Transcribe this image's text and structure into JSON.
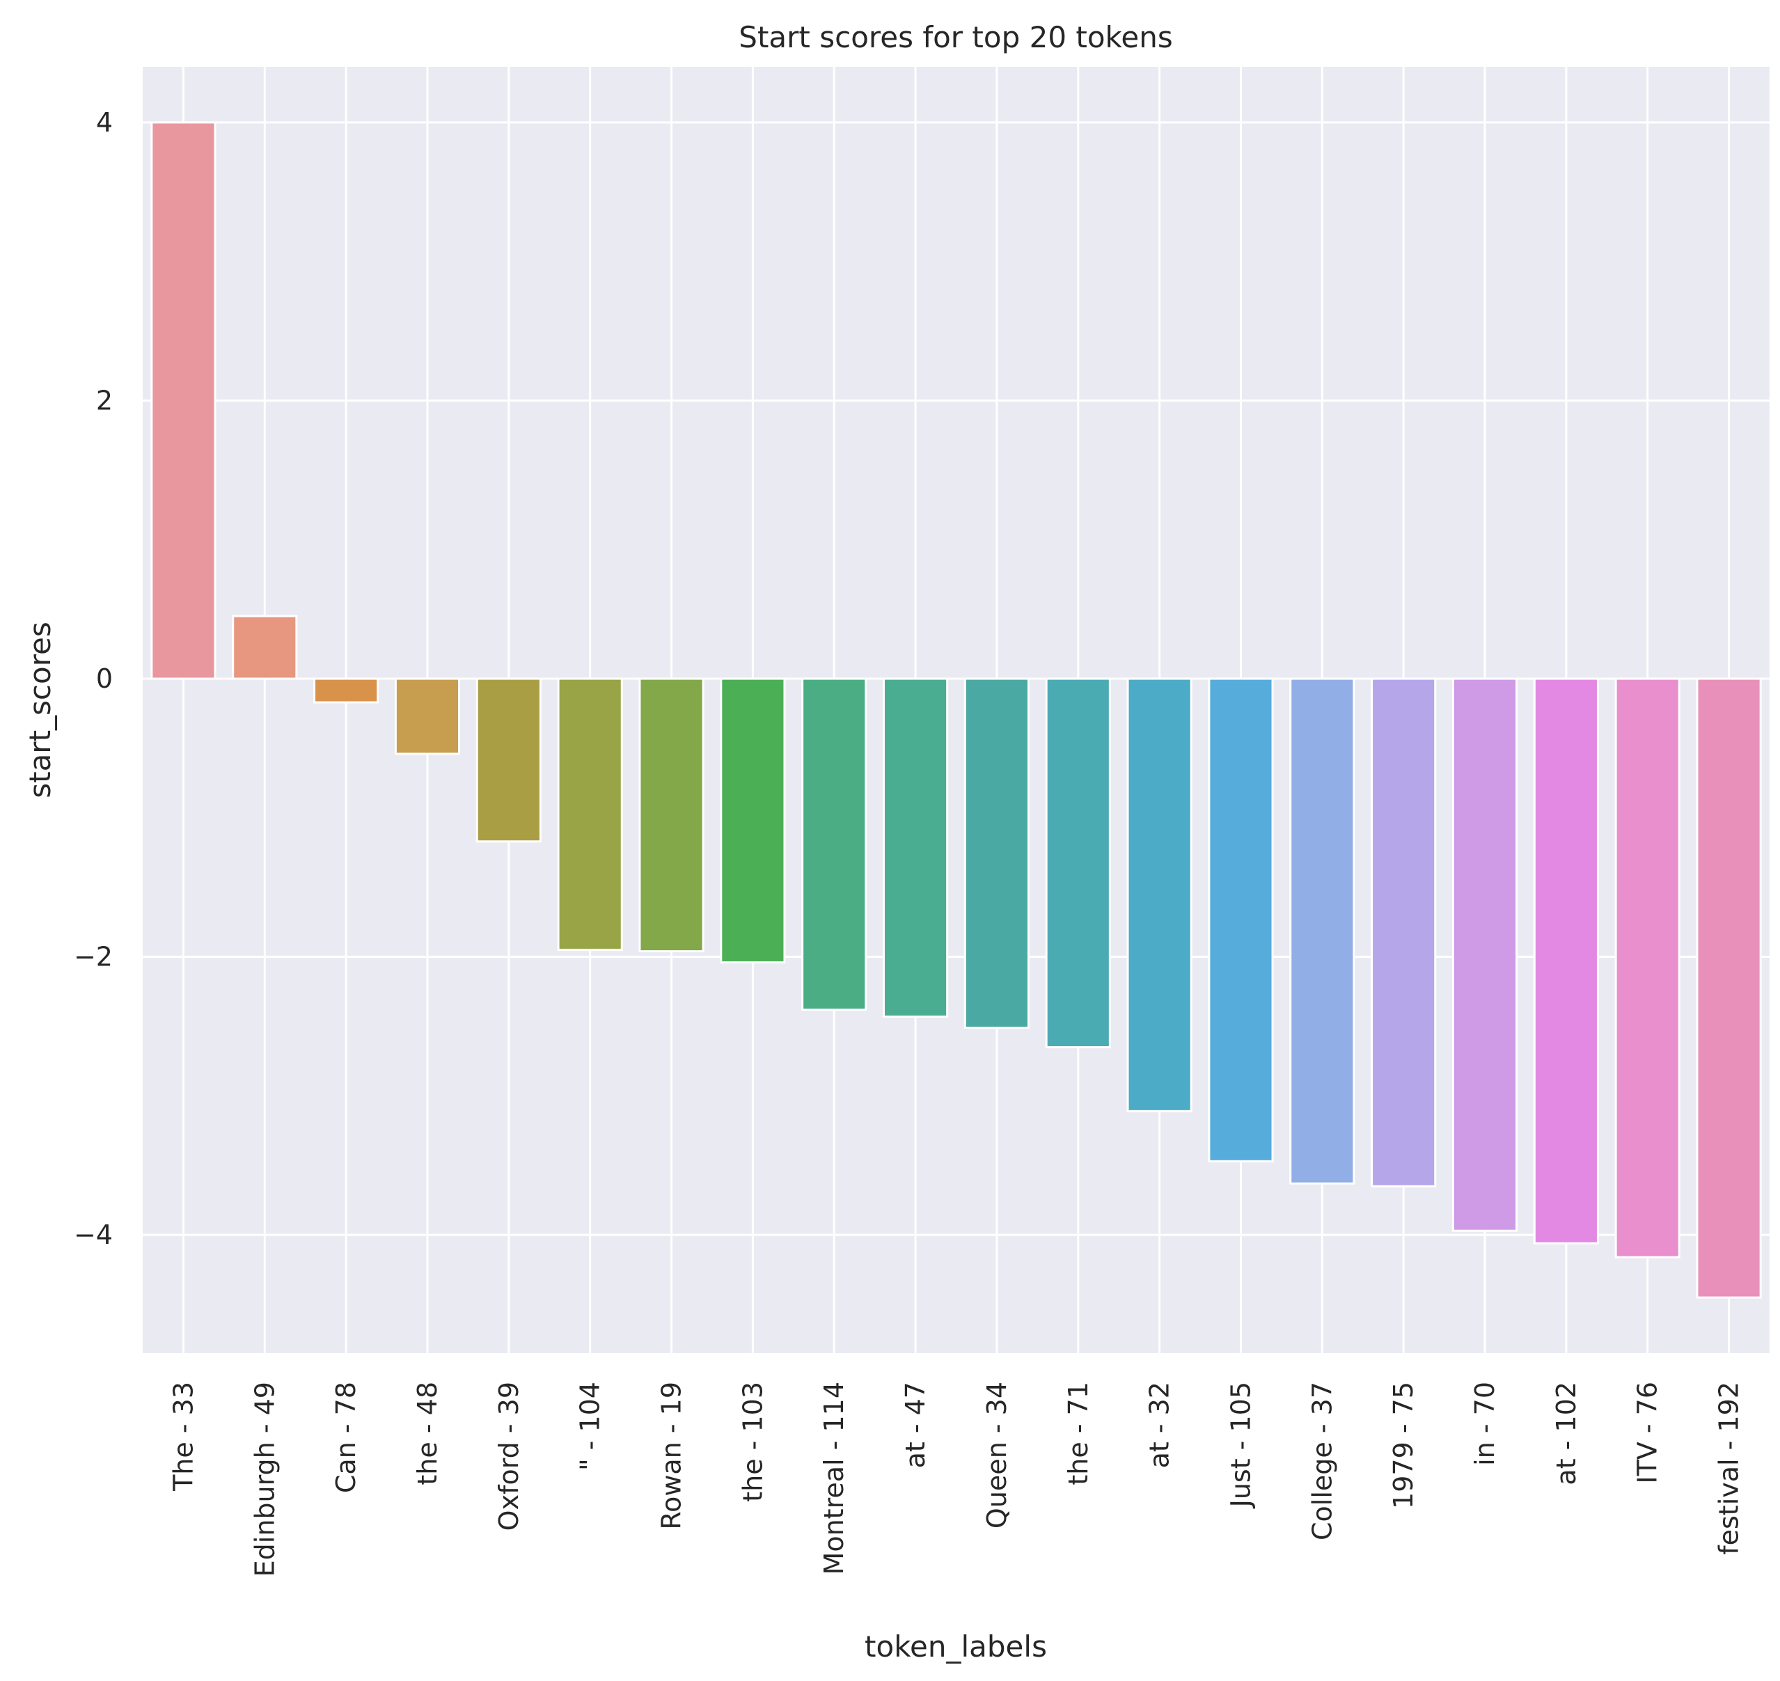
{
  "chart_data": {
    "type": "bar",
    "title": "Start scores for top 20 tokens",
    "xlabel": "token_labels",
    "ylabel": "start_scores",
    "categories": [
      "The - 33",
      "Edinburgh - 49",
      "Can - 78",
      "the - 48",
      "Oxford - 39",
      "\" - 104",
      "Rowan - 19",
      "the - 103",
      "Montreal - 114",
      "at - 47",
      "Queen - 34",
      "the - 71",
      "at - 32",
      "Just - 105",
      "College - 37",
      "1979 - 75",
      "in - 70",
      "at - 102",
      "ITV - 76",
      "festival - 192"
    ],
    "values": [
      4.0,
      0.45,
      -0.17,
      -0.54,
      -1.17,
      -1.95,
      -1.96,
      -2.04,
      -2.38,
      -2.43,
      -2.51,
      -2.65,
      -3.11,
      -3.47,
      -3.63,
      -3.65,
      -3.97,
      -4.06,
      -4.16,
      -4.45
    ],
    "colors": [
      "#e8979f",
      "#e79780",
      "#d9924a",
      "#c79d4f",
      "#aa9e45",
      "#98a445",
      "#82a84a",
      "#4aaf55",
      "#4aad83",
      "#4aad91",
      "#4aa9a3",
      "#4aabb3",
      "#4cabc6",
      "#56acdb",
      "#92aee6",
      "#b5a6ea",
      "#cf9ae6",
      "#e389e3",
      "#ea8fce",
      "#e990ba"
    ],
    "yticks": [
      4,
      2,
      0,
      -2,
      -4
    ],
    "yticklabels": [
      "4",
      "2",
      "0",
      "−2",
      "−4"
    ],
    "ylim": [
      -4.85,
      4.4
    ],
    "grid": true,
    "background": "#eaeaf2",
    "grid_color": "#ffffff"
  }
}
